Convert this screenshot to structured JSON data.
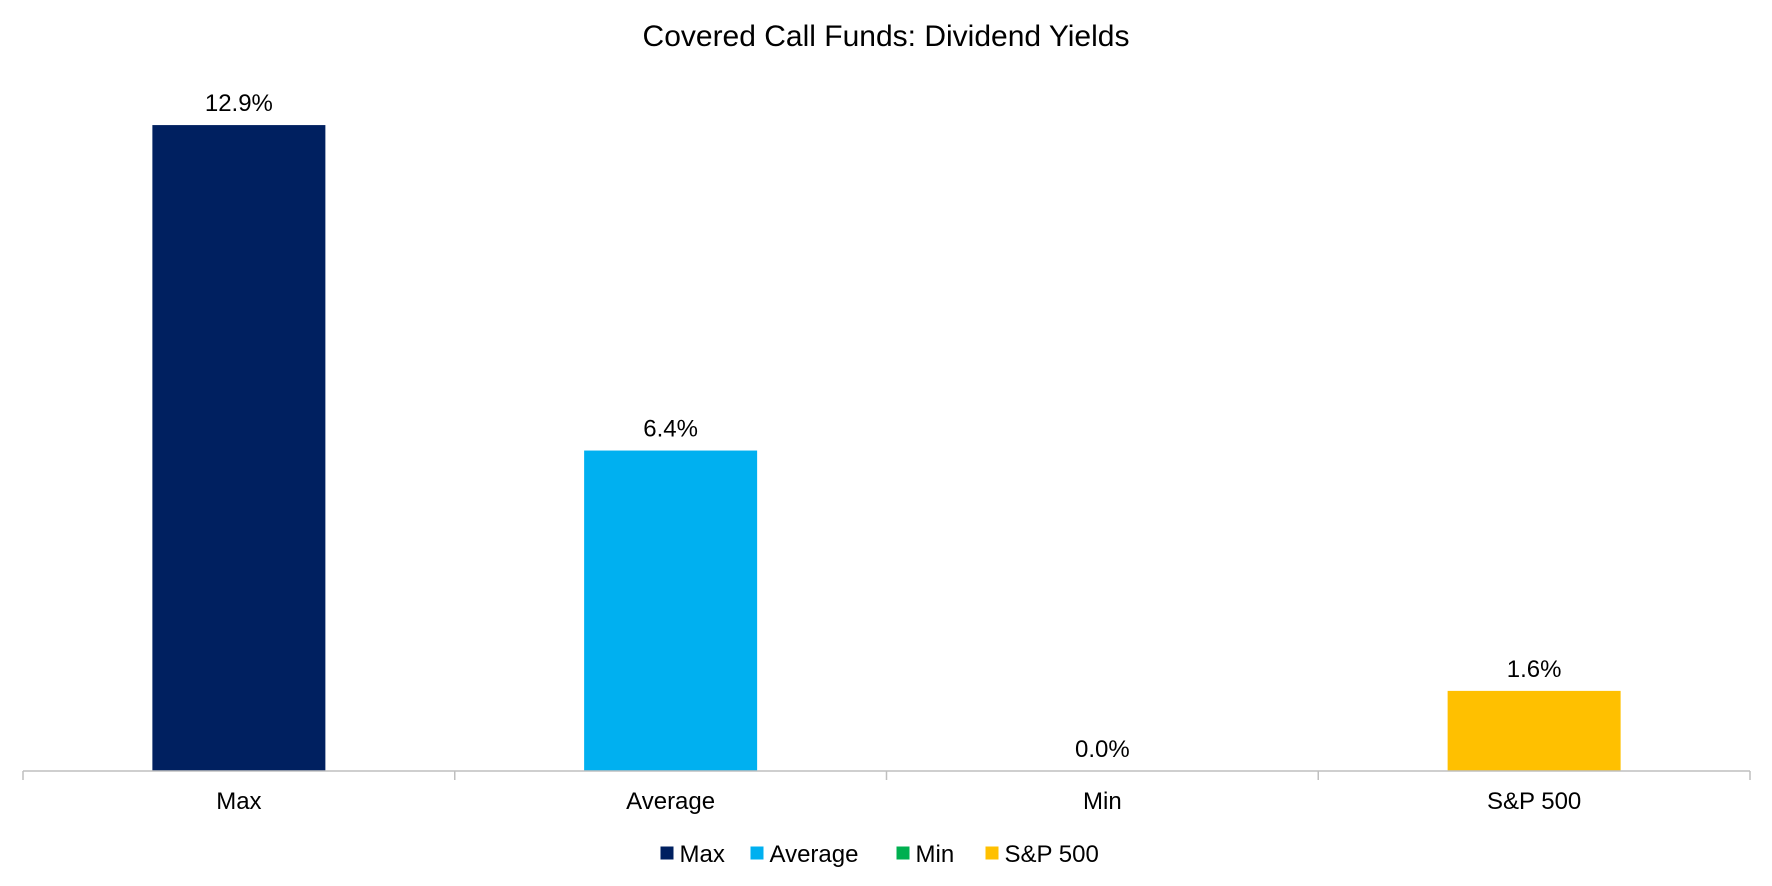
{
  "chart_data": {
    "type": "bar",
    "title": "Covered Call Funds: Dividend Yields",
    "xlabel": "",
    "ylabel": "",
    "categories": [
      "Max",
      "Average",
      "Min",
      "S&P 500"
    ],
    "values": [
      12.9,
      6.4,
      0.0,
      1.6
    ],
    "data_labels": [
      "12.9%",
      "6.4%",
      "0.0%",
      "1.6%"
    ],
    "colors": [
      "#002060",
      "#00B0F0",
      "#00B050",
      "#FFC000"
    ],
    "ylim": [
      0,
      14
    ],
    "grid": false,
    "y_axis_visible": false,
    "legend": {
      "position": "bottom",
      "entries": [
        "Max",
        "Average",
        "Min",
        "S&P 500"
      ]
    }
  }
}
